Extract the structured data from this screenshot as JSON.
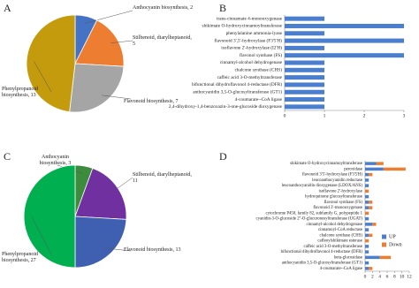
{
  "chart_data": [
    {
      "type": "pie",
      "label": "A",
      "values": [
        2,
        5,
        7,
        13
      ],
      "value_labels": [
        "Anthocyanin biosynthesis, 2",
        "Stilbenoid, diarylheptanoid, 5",
        "Flavonoid biosynthesis, 7",
        "Phenylpropanoid biosynthesis, 13"
      ],
      "colors": [
        "#4472c4",
        "#ed7d31",
        "#a5a5a5",
        "#c59b0e"
      ]
    },
    {
      "type": "barh",
      "label": "B",
      "categories": [
        "trans-cinnamate 4-monooxygenase",
        "shikimate O-hydroxycinnamoyltransferase",
        "phenylalanine ammonia-lyase",
        "flavonoid 3',5'-hydroxylase (F3'5'H)",
        "isoflavone 2'-hydroxylase (I2'H)",
        "flavonol synthase (FS)",
        "cinnamyl-alcohol dehydrogenase",
        "chalcone synthase (CHS)",
        "caffeic acid 3-O-methyltransferase",
        "bifunctional dihydroflavonol 4-reductase (DFR)",
        "anthocyanidin 3,5-O-glucosyltransferase (GT1)",
        "4-coumarate--CoA ligase",
        "2,4-dihydroxy-1,4-benzoxazin-3-one-glucoside dioxygenase"
      ],
      "values": [
        1,
        3,
        1,
        3,
        1,
        3,
        1,
        1,
        1,
        1,
        1,
        1,
        1
      ],
      "color": "#4a7ecf",
      "xlim": [
        0,
        3
      ],
      "xticks": [
        0,
        1,
        2,
        3
      ]
    },
    {
      "type": "pie",
      "label": "C",
      "values": [
        3,
        11,
        13,
        27
      ],
      "value_labels": [
        "Anthocyanin biosynthesis, 3",
        "Stilbenoid, diarylheptanoid, 11",
        "Flavonoid biosynthesis, 13",
        "Phenylpropanoid biosynthesis, 27"
      ],
      "colors": [
        "#3d8b3d",
        "#7030a0",
        "#3f5fb0",
        "#00b050"
      ]
    },
    {
      "type": "barh-stacked",
      "label": "D",
      "categories": [
        "shikimate O-hydroxycinnamoyltransferase",
        "peroxidase",
        "flavonoid 3'5'-hydroxylase (F3'5'H)",
        "leucoanthocyanidin reductase",
        "leucoanthocyanidin dioxygenase (LDOX/ANS)",
        "isoflavone 2'-hydroxylase",
        "hydroquinone glucosyltransferase",
        "flavonol synthase (FS)",
        "flavonoid 3'-monooxygenase",
        "cytochrome P450, family 82, subfamily G, polypeptide 1",
        "cyanidin-3-O-glucoside 2''-O-glucuronosyltransferase (UGAT)",
        "cinnamyl-alcohol dehydrogenase",
        "cinnamoyl-CoA reductase",
        "chalcone synthase (CHS)",
        "caffeoylshikimate esterase",
        "caffeic acid 3-O-methyltransferase",
        "bifunctional dihydroflavonol 4-reductase (DFR)",
        "beta-glucosidase",
        "anthocyanidin 3,5-O-glucosyltransferase (GT1)",
        "4-coumarate--CoA ligase"
      ],
      "series": [
        {
          "name": "UP",
          "color": "#4a7ecf",
          "values": [
            3,
            5,
            1,
            1,
            1,
            0,
            1,
            1,
            1,
            0,
            1,
            2,
            1,
            1,
            0,
            1,
            1,
            4,
            1,
            1
          ]
        },
        {
          "name": "Down",
          "color": "#ed7d31",
          "values": [
            2,
            6,
            1,
            0,
            0,
            1,
            0,
            1,
            1,
            1,
            0,
            1,
            0,
            1,
            1,
            0,
            0,
            3,
            0,
            1
          ]
        }
      ],
      "xlim": [
        0,
        12
      ],
      "xticks": [
        0,
        2,
        4,
        6,
        8,
        10,
        12
      ],
      "legend": "right"
    }
  ]
}
